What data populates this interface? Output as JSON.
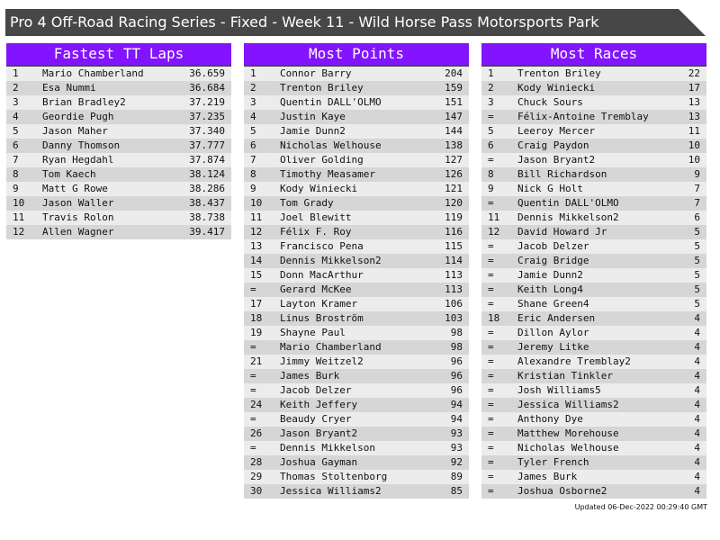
{
  "title": "Pro 4 Off-Road Racing Series - Fixed - Week 11 - Wild Horse Pass Motorsports Park",
  "updated": "Updated 06-Dec-2022 00:29:40 GMT",
  "colors": {
    "header": "#8214ff",
    "title_bar": "#474747"
  },
  "panels": [
    {
      "heading": "Fastest TT Laps",
      "rows": [
        [
          "1",
          "Mario Chamberland",
          "36.659"
        ],
        [
          "2",
          "Esa Nummi",
          "36.684"
        ],
        [
          "3",
          "Brian Bradley2",
          "37.219"
        ],
        [
          "4",
          "Geordie Pugh",
          "37.235"
        ],
        [
          "5",
          "Jason Maher",
          "37.340"
        ],
        [
          "6",
          "Danny Thomson",
          "37.777"
        ],
        [
          "7",
          "Ryan Hegdahl",
          "37.874"
        ],
        [
          "8",
          "Tom Kaech",
          "38.124"
        ],
        [
          "9",
          "Matt G Rowe",
          "38.286"
        ],
        [
          "10",
          "Jason Waller",
          "38.437"
        ],
        [
          "11",
          "Travis Rolon",
          "38.738"
        ],
        [
          "12",
          "Allen Wagner",
          "39.417"
        ]
      ]
    },
    {
      "heading": "Most Points",
      "rows": [
        [
          "1",
          "Connor Barry",
          "204"
        ],
        [
          "2",
          "Trenton Briley",
          "159"
        ],
        [
          "3",
          "Quentin DALL'OLMO",
          "151"
        ],
        [
          "4",
          "Justin Kaye",
          "147"
        ],
        [
          "5",
          "Jamie Dunn2",
          "144"
        ],
        [
          "6",
          "Nicholas Welhouse",
          "138"
        ],
        [
          "7",
          "Oliver Golding",
          "127"
        ],
        [
          "8",
          "Timothy Measamer",
          "126"
        ],
        [
          "9",
          "Kody Winiecki",
          "121"
        ],
        [
          "10",
          "Tom Grady",
          "120"
        ],
        [
          "11",
          "Joel Blewitt",
          "119"
        ],
        [
          "12",
          "Félix F. Roy",
          "116"
        ],
        [
          "13",
          "Francisco Pena",
          "115"
        ],
        [
          "14",
          "Dennis Mikkelson2",
          "114"
        ],
        [
          "15",
          "Donn MacArthur",
          "113"
        ],
        [
          "=",
          "Gerard McKee",
          "113"
        ],
        [
          "17",
          "Layton Kramer",
          "106"
        ],
        [
          "18",
          "Linus Broström",
          "103"
        ],
        [
          "19",
          "Shayne Paul",
          "98"
        ],
        [
          "=",
          "Mario Chamberland",
          "98"
        ],
        [
          "21",
          "Jimmy Weitzel2",
          "96"
        ],
        [
          "=",
          "James Burk",
          "96"
        ],
        [
          "=",
          "Jacob Delzer",
          "96"
        ],
        [
          "24",
          "Keith Jeffery",
          "94"
        ],
        [
          "=",
          "Beaudy Cryer",
          "94"
        ],
        [
          "26",
          "Jason Bryant2",
          "93"
        ],
        [
          "=",
          "Dennis Mikkelson",
          "93"
        ],
        [
          "28",
          "Joshua Gayman",
          "92"
        ],
        [
          "29",
          "Thomas Stoltenborg",
          "89"
        ],
        [
          "30",
          "Jessica Williams2",
          "85"
        ]
      ]
    },
    {
      "heading": "Most Races",
      "rows": [
        [
          "1",
          "Trenton Briley",
          "22"
        ],
        [
          "2",
          "Kody Winiecki",
          "17"
        ],
        [
          "3",
          "Chuck Sours",
          "13"
        ],
        [
          "=",
          "Félix-Antoine Tremblay",
          "13"
        ],
        [
          "5",
          "Leeroy Mercer",
          "11"
        ],
        [
          "6",
          "Craig Paydon",
          "10"
        ],
        [
          "=",
          "Jason Bryant2",
          "10"
        ],
        [
          "8",
          "Bill Richardson",
          "9"
        ],
        [
          "9",
          "Nick G Holt",
          "7"
        ],
        [
          "=",
          "Quentin DALL'OLMO",
          "7"
        ],
        [
          "11",
          "Dennis Mikkelson2",
          "6"
        ],
        [
          "12",
          "David Howard Jr",
          "5"
        ],
        [
          "=",
          "Jacob Delzer",
          "5"
        ],
        [
          "=",
          "Craig Bridge",
          "5"
        ],
        [
          "=",
          "Jamie Dunn2",
          "5"
        ],
        [
          "=",
          "Keith Long4",
          "5"
        ],
        [
          "=",
          "Shane Green4",
          "5"
        ],
        [
          "18",
          "Eric Andersen",
          "4"
        ],
        [
          "=",
          "Dillon Aylor",
          "4"
        ],
        [
          "=",
          "Jeremy Litke",
          "4"
        ],
        [
          "=",
          "Alexandre Tremblay2",
          "4"
        ],
        [
          "=",
          "Kristian Tinkler",
          "4"
        ],
        [
          "=",
          "Josh Williams5",
          "4"
        ],
        [
          "=",
          "Jessica Williams2",
          "4"
        ],
        [
          "=",
          "Anthony Dye",
          "4"
        ],
        [
          "=",
          "Matthew Morehouse",
          "4"
        ],
        [
          "=",
          "Nicholas Welhouse",
          "4"
        ],
        [
          "=",
          "Tyler French",
          "4"
        ],
        [
          "=",
          "James Burk",
          "4"
        ],
        [
          "=",
          "Joshua Osborne2",
          "4"
        ]
      ]
    }
  ]
}
